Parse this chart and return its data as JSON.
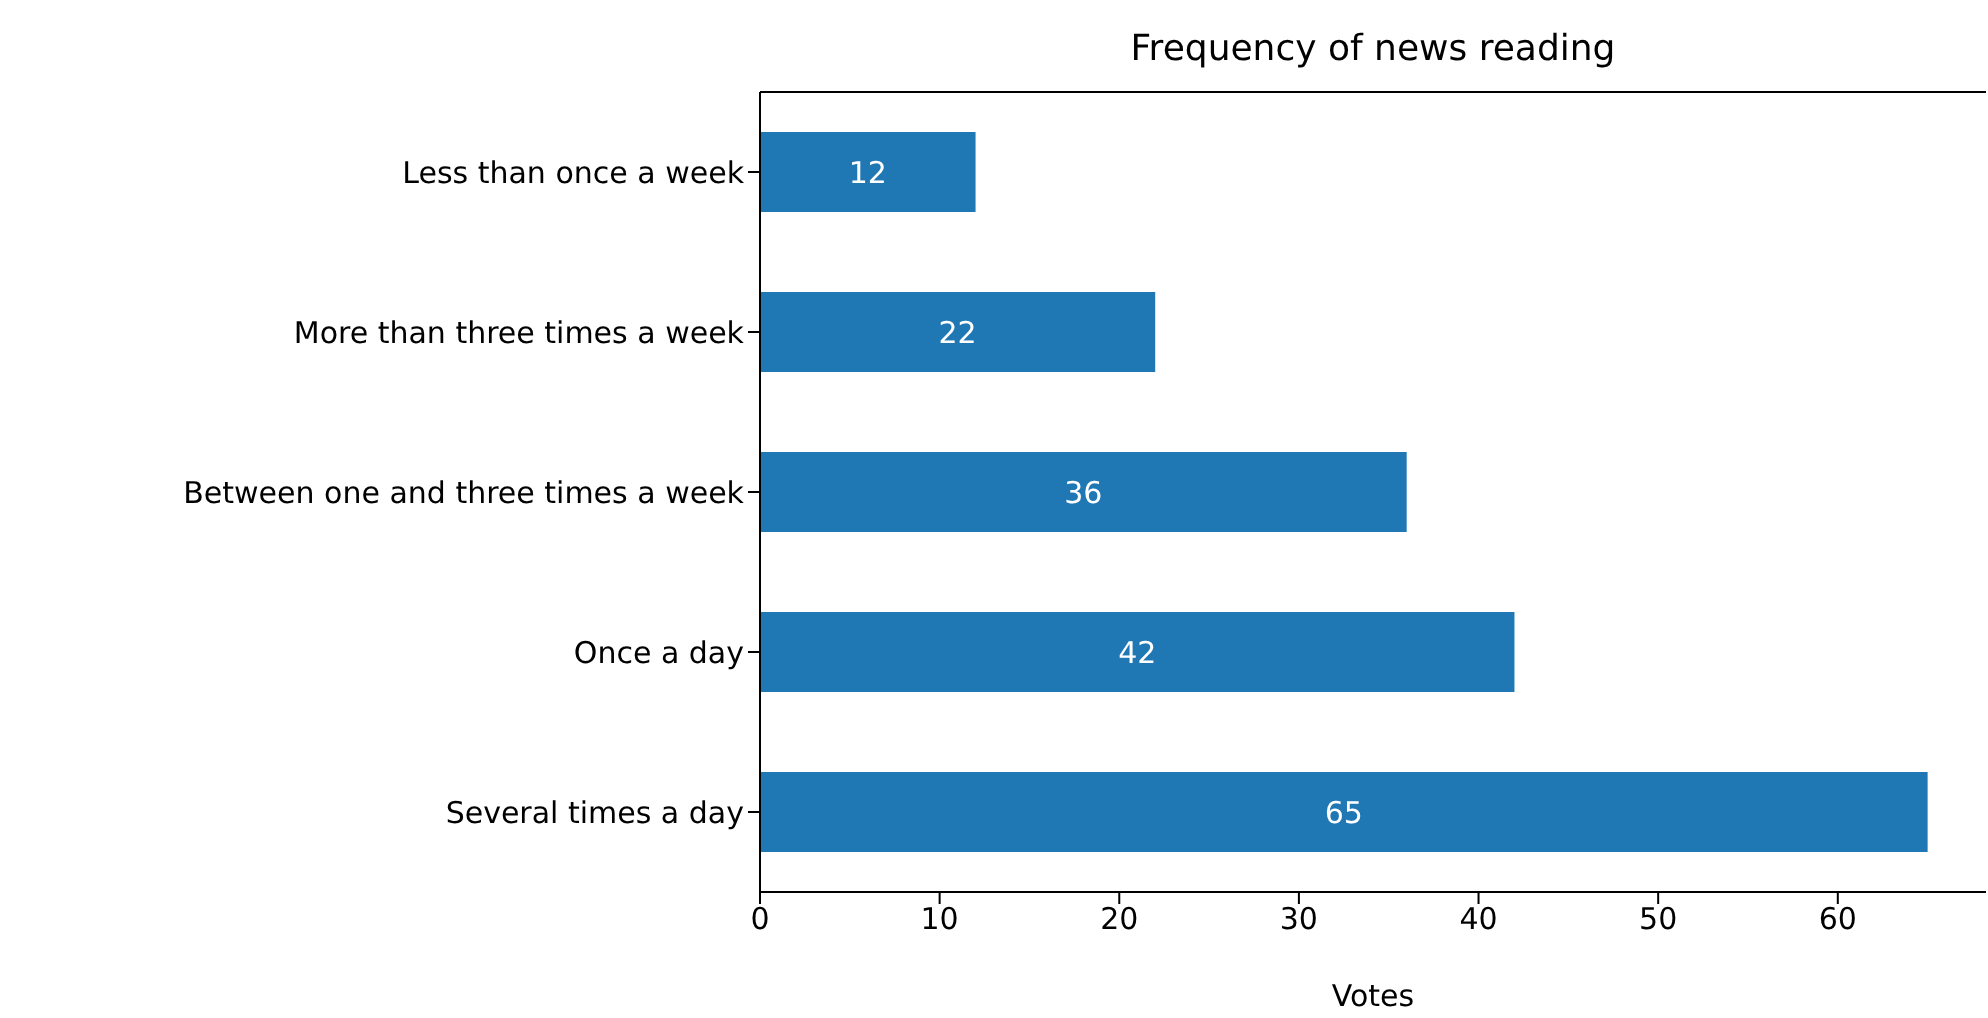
{
  "chart_data": {
    "type": "bar",
    "orientation": "horizontal",
    "title": "Frequency of news reading",
    "xlabel": "Votes",
    "categories": [
      "Less than once a week",
      "More than three times a week",
      "Between one and three times a week ",
      "Once a day",
      "Several times a day"
    ],
    "values": [
      12,
      22,
      36,
      42,
      65
    ],
    "color": "#1f77b4",
    "data_labels": true,
    "xlim": [
      0,
      68.25
    ],
    "xticks": [
      0,
      10,
      20,
      30,
      40,
      50,
      60
    ],
    "grid": false
  }
}
